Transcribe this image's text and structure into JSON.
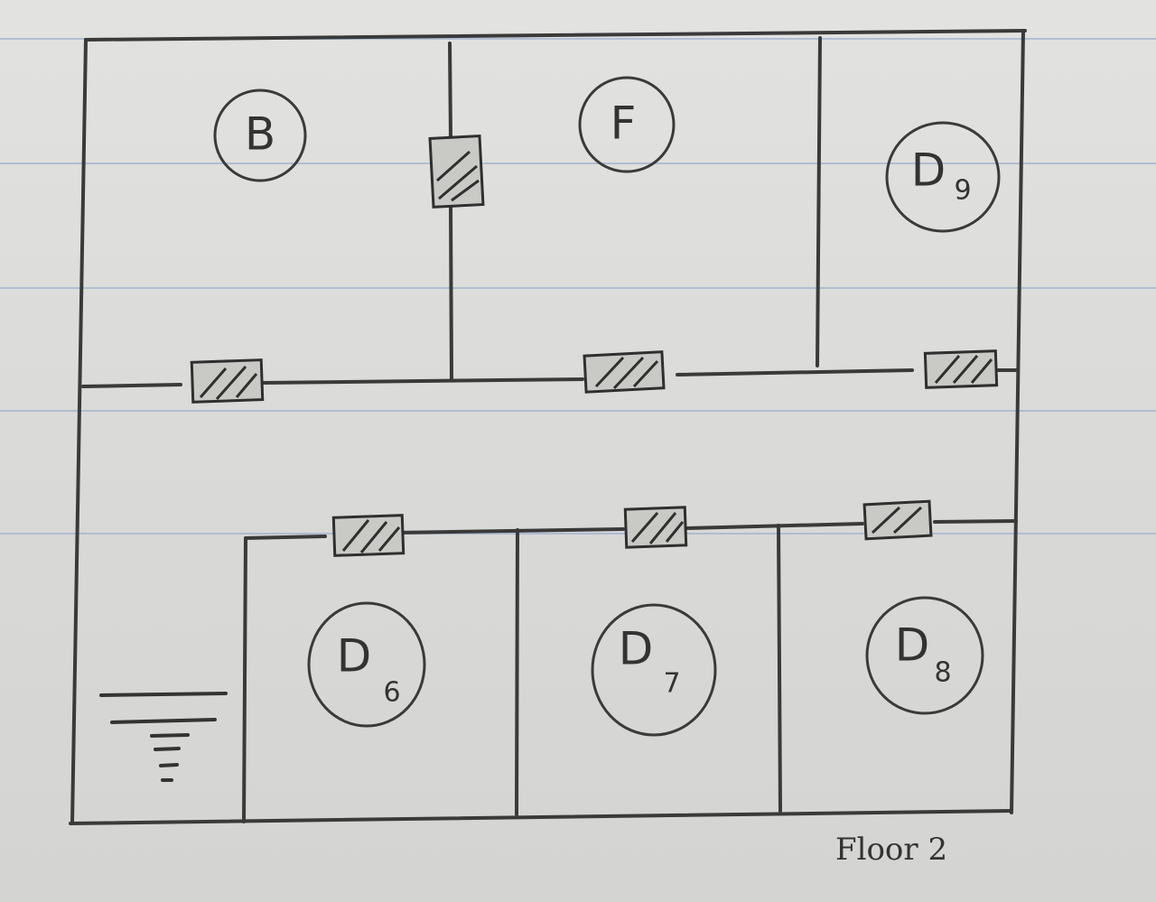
{
  "floor_label": "Floor 2",
  "rooms": [
    {
      "id": "B",
      "label": "B"
    },
    {
      "id": "F",
      "label": "F"
    },
    {
      "id": "D9",
      "main": "D",
      "sub": "9"
    },
    {
      "id": "D6",
      "main": "D",
      "sub": "6"
    },
    {
      "id": "D7",
      "main": "D",
      "sub": "7"
    },
    {
      "id": "D8",
      "main": "D",
      "sub": "8"
    }
  ],
  "colors": {
    "paper": "#dcdcda",
    "ink": "#3a3a3a",
    "rule": "#9fb3cf"
  }
}
